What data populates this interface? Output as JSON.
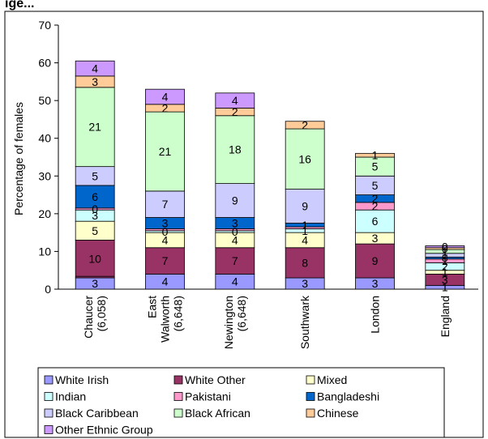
{
  "chart_data": {
    "type": "bar",
    "stacked": true,
    "title": "ige...",
    "ylabel": "Percentage of females",
    "xlabel": "",
    "ylim": [
      0,
      70
    ],
    "yticks": [
      0,
      10,
      20,
      30,
      40,
      50,
      60,
      70
    ],
    "grid": false,
    "legend_position": "bottom",
    "categories": [
      [
        "Chaucer",
        "(6,058)"
      ],
      [
        "East",
        "Walworth",
        "(6,648)"
      ],
      [
        "Newington",
        "(6,648)"
      ],
      [
        "Southwark"
      ],
      [
        "London"
      ],
      [
        "England"
      ]
    ],
    "series": [
      {
        "name": "White Irish",
        "color": "#9999FF",
        "values": [
          3,
          4,
          4,
          3,
          3,
          1
        ],
        "labels": [
          "3",
          "4",
          "4",
          "3",
          "3",
          "1"
        ]
      },
      {
        "name": "White Other",
        "color": "#993366",
        "values": [
          10,
          7,
          7,
          8,
          9,
          3
        ],
        "labels": [
          "10",
          "7",
          "7",
          "8",
          "9",
          "3"
        ]
      },
      {
        "name": "Mixed",
        "color": "#FFFFCC",
        "values": [
          5,
          4,
          4,
          4,
          3,
          1
        ],
        "labels": [
          "5",
          "4",
          "4",
          "4",
          "3",
          "1"
        ]
      },
      {
        "name": "Indian",
        "color": "#CCFFFF",
        "values": [
          3,
          0.5,
          0.5,
          1,
          6,
          2
        ],
        "labels": [
          "3",
          "0",
          "0",
          "1",
          "6",
          "2"
        ]
      },
      {
        "name": "Pakistani",
        "color": "#FF99CC",
        "values": [
          0.5,
          0.5,
          0.5,
          0.5,
          2,
          1
        ],
        "labels": [
          "0",
          "",
          "",
          "",
          "2",
          "1"
        ]
      },
      {
        "name": "Bangladeshi",
        "color": "#0066CC",
        "values": [
          6,
          3,
          3,
          1,
          2,
          0.5
        ],
        "labels": [
          "6",
          "3",
          "3",
          "1",
          "2",
          "0"
        ]
      },
      {
        "name": "Black Caribbean",
        "color": "#CCCCFF",
        "values": [
          5,
          7,
          9,
          9,
          5,
          1
        ],
        "labels": [
          "5",
          "7",
          "9",
          "9",
          "5",
          "1"
        ]
      },
      {
        "name": "Black African",
        "color": "#CCFFCC",
        "values": [
          21,
          21,
          18,
          16,
          5,
          1
        ],
        "labels": [
          "21",
          "21",
          "18",
          "16",
          "5",
          "1"
        ]
      },
      {
        "name": "Chinese",
        "color": "#FFCC99",
        "values": [
          3,
          2,
          2,
          2,
          1,
          0.5
        ],
        "labels": [
          "3",
          "2",
          "2",
          "2",
          "1",
          "0"
        ]
      },
      {
        "name": "Other Ethnic Group",
        "color": "#CC99FF",
        "values": [
          4,
          4,
          4,
          0,
          0,
          0.5
        ],
        "labels": [
          "4",
          "4",
          "4",
          "",
          "",
          "0"
        ]
      }
    ],
    "extra_separators": [
      [
        {
          "after_series": 0,
          "value": 0.4
        }
      ],
      [],
      [],
      [],
      [],
      []
    ]
  }
}
